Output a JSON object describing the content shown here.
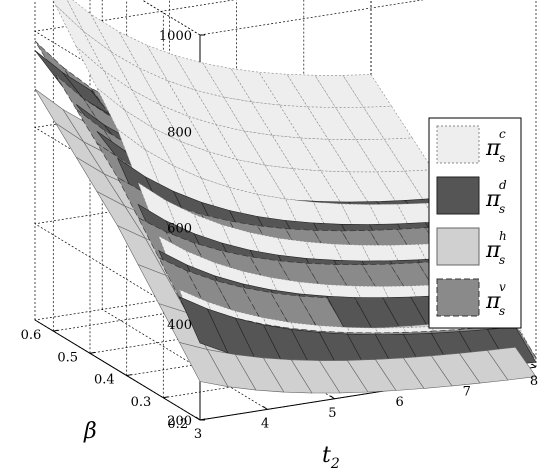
{
  "chart_data": {
    "type": "surface",
    "xlabel": "t",
    "xlabel_sub": "2",
    "ylabel": "β",
    "zlabel": "",
    "x_ticks": [
      "3",
      "4",
      "5",
      "6",
      "7",
      "8"
    ],
    "y_ticks": [
      "0.2",
      "0.3",
      "0.4",
      "0.5",
      "0.6"
    ],
    "z_ticks": [
      "200",
      "400",
      "600",
      "800",
      "1000"
    ],
    "xlim": [
      3,
      8
    ],
    "ylim": [
      0.2,
      0.65
    ],
    "zlim": [
      200,
      1000
    ],
    "grid": true,
    "legend_position": "right",
    "series": [
      {
        "symbol": "π",
        "sup": "c",
        "sub": "s",
        "color": "#eeeeee",
        "edge": "#8a8a8a",
        "dash": "2,2",
        "z_at_t3": [
          360,
          700,
          940
        ],
        "z_at_t8": [
          215,
          440,
          600
        ]
      },
      {
        "symbol": "π",
        "sup": "d",
        "sub": "s",
        "color": "#555555",
        "edge": "#222222",
        "dash": "",
        "z_at_t3": [
          360,
          640,
          760
        ],
        "z_at_t8": [
          210,
          400,
          480
        ]
      },
      {
        "symbol": "π",
        "sup": "h",
        "sub": "s",
        "color": "#d0d0d0",
        "edge": "#666666",
        "dash": "",
        "z_at_t3": [
          280,
          500,
          680
        ],
        "z_at_t8": [
          180,
          320,
          420
        ]
      },
      {
        "symbol": "π",
        "sup": "v",
        "sub": "s",
        "color": "#8a8a8a",
        "edge": "#333333",
        "dash": "6,3",
        "z_at_t3": [
          370,
          600,
          780
        ],
        "z_at_t8": [
          220,
          390,
          460
        ]
      }
    ]
  }
}
